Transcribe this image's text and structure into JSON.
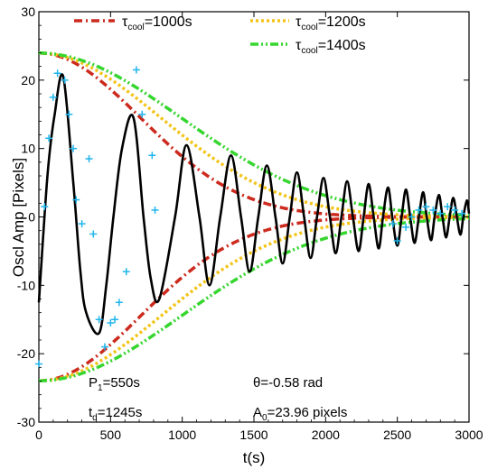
{
  "chart_data": {
    "type": "line",
    "xlabel": "t(s)",
    "ylabel": "Oscl Amp [Pixels]",
    "xlim": [
      0,
      3000
    ],
    "ylim": [
      -30,
      30
    ],
    "x_ticks": [
      0,
      500,
      1000,
      1500,
      2000,
      2500,
      3000
    ],
    "y_ticks": [
      -30,
      -20,
      -10,
      0,
      10,
      20,
      30
    ],
    "grid": false,
    "legend_position": "top",
    "legend": [
      {
        "symbol": "τ",
        "sub": "cool",
        "value": "=1000s",
        "color": "#cc2a1e",
        "tau": 1000
      },
      {
        "symbol": "τ",
        "sub": "cool",
        "value": "=1200s",
        "color": "#f3c419",
        "tau": 1200
      },
      {
        "symbol": "τ",
        "sub": "cool",
        "value": "=1400s",
        "color": "#35d62e",
        "tau": 1400
      }
    ],
    "envelope": {
      "A0": 23.96
    },
    "oscillation": {
      "color": "#000000",
      "points": [
        [
          0,
          -12.5
        ],
        [
          60,
          6
        ],
        [
          110,
          15
        ],
        [
          170,
          20.5
        ],
        [
          240,
          5
        ],
        [
          290,
          -8
        ],
        [
          330,
          -14
        ],
        [
          420,
          -17
        ],
        [
          470,
          -10
        ],
        [
          520,
          0
        ],
        [
          580,
          10
        ],
        [
          660,
          14.5
        ],
        [
          730,
          0
        ],
        [
          780,
          -9
        ],
        [
          840,
          -12
        ],
        [
          950,
          0
        ],
        [
          1030,
          10.5
        ],
        [
          1120,
          0
        ],
        [
          1190,
          -10
        ],
        [
          1265,
          0
        ],
        [
          1340,
          9
        ],
        [
          1410,
          0
        ],
        [
          1470,
          -8
        ],
        [
          1530,
          0
        ],
        [
          1590,
          7.5
        ],
        [
          1650,
          0
        ],
        [
          1700,
          -6.8
        ],
        [
          1750,
          0
        ],
        [
          1800,
          6.5
        ],
        [
          1850,
          0
        ],
        [
          1895,
          -6
        ],
        [
          1940,
          0
        ],
        [
          1985,
          5.7
        ],
        [
          2030,
          0
        ],
        [
          2070,
          -5.3
        ],
        [
          2110,
          0
        ],
        [
          2150,
          5.2
        ],
        [
          2190,
          0
        ],
        [
          2230,
          -5
        ],
        [
          2265,
          0
        ],
        [
          2300,
          4.8
        ],
        [
          2335,
          0
        ],
        [
          2370,
          -4.6
        ],
        [
          2400,
          0
        ],
        [
          2435,
          4.3
        ],
        [
          2465,
          0
        ],
        [
          2500,
          -4.2
        ],
        [
          2530,
          0
        ],
        [
          2560,
          4
        ],
        [
          2590,
          0
        ],
        [
          2620,
          -3.8
        ],
        [
          2650,
          0
        ],
        [
          2680,
          3.6
        ],
        [
          2705,
          0
        ],
        [
          2735,
          -3.4
        ],
        [
          2760,
          0
        ],
        [
          2790,
          3.2
        ],
        [
          2815,
          0
        ],
        [
          2840,
          -3
        ],
        [
          2865,
          0
        ],
        [
          2890,
          2.8
        ],
        [
          2915,
          0
        ],
        [
          2940,
          -2.6
        ],
        [
          2960,
          0
        ],
        [
          2985,
          2.4
        ],
        [
          3000,
          0.5
        ]
      ]
    },
    "data_points": {
      "marker": "+",
      "color": "#1fb5ec",
      "points": [
        [
          0,
          -21.5
        ],
        [
          40,
          1.5
        ],
        [
          70,
          11.5
        ],
        [
          100,
          17.5
        ],
        [
          130,
          21
        ],
        [
          180,
          20
        ],
        [
          210,
          15
        ],
        [
          240,
          10
        ],
        [
          260,
          2.5
        ],
        [
          300,
          -1
        ],
        [
          350,
          8.5
        ],
        [
          380,
          -2.5
        ],
        [
          420,
          -15
        ],
        [
          460,
          -19
        ],
        [
          500,
          -15.5
        ],
        [
          530,
          -15
        ],
        [
          560,
          -12.5
        ],
        [
          610,
          -8
        ],
        [
          680,
          21.5
        ],
        [
          720,
          15
        ],
        [
          790,
          9
        ],
        [
          810,
          1
        ],
        [
          2470,
          -1
        ],
        [
          2500,
          -3.5
        ],
        [
          2560,
          -1.5
        ],
        [
          2600,
          0
        ],
        [
          2650,
          1
        ],
        [
          2700,
          1.5
        ],
        [
          2750,
          1
        ],
        [
          2800,
          0.5
        ],
        [
          2850,
          1.5
        ],
        [
          2900,
          1
        ],
        [
          2950,
          0.5
        ]
      ]
    },
    "annotations": [
      {
        "main": "P",
        "sub": "1",
        "rest": "=550s"
      },
      {
        "main": "t",
        "sub": "d",
        "rest": "=1245s"
      },
      {
        "main": "θ=-0.58 rad",
        "sub": "",
        "rest": ""
      },
      {
        "main": "A",
        "sub": "0",
        "rest": "=23.96 pixels"
      }
    ]
  }
}
